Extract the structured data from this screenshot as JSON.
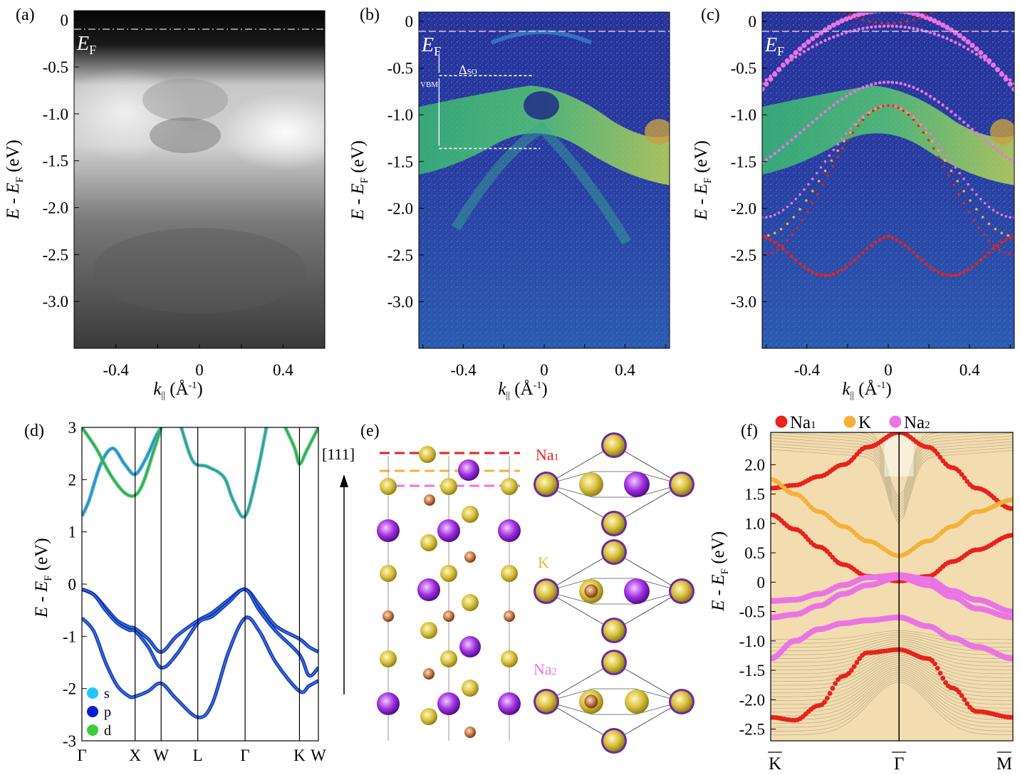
{
  "panels": {
    "a": {
      "label": "(a)",
      "ef_label": "E",
      "ef_sub": "F"
    },
    "b": {
      "label": "(b)",
      "ef_label": "E",
      "ef_sub": "F",
      "delta_label": "Δ",
      "delta_sub": "SO",
      "vbm_label": "VBM"
    },
    "c": {
      "label": "(c)",
      "ef_label": "E",
      "ef_sub": "F"
    },
    "d": {
      "label": "(d)"
    },
    "e": {
      "label": "(e)",
      "direction": "[111]",
      "na1": "Na",
      "na1_sub": "1",
      "k": "K",
      "na2": "Na",
      "na2_sub": "2"
    },
    "f": {
      "label": "(f)"
    }
  },
  "chart_data": [
    {
      "id": "a",
      "type": "heatmap",
      "xlabel": "k|| (Å-1)",
      "ylabel": "E - EF (eV)",
      "xlim": [
        -0.6,
        0.6
      ],
      "ylim": [
        -3.5,
        0.1
      ],
      "xticks": [
        -0.4,
        0,
        0.4
      ],
      "yticks": [
        0,
        -0.5,
        -1.0,
        -1.5,
        -2.0,
        -2.5,
        -3.0
      ],
      "ytick_labels": [
        "0",
        "-0.5",
        "-1.0",
        "-1.5",
        "-2.0",
        "-2.5",
        "-3.0"
      ],
      "colormap": "grayscale"
    },
    {
      "id": "b",
      "type": "heatmap",
      "xlabel": "k|| (Å-1)",
      "ylabel": "E - EF (eV)",
      "xlim": [
        -0.62,
        0.62
      ],
      "ylim": [
        -3.5,
        0.1
      ],
      "xticks": [
        -0.4,
        0,
        0.4
      ],
      "yticks": [
        0,
        -0.5,
        -1.0,
        -1.5,
        -2.0,
        -2.5,
        -3.0
      ],
      "ytick_labels": [
        "0",
        "-0.5",
        "-1.0",
        "-1.5",
        "-2.0",
        "-2.5",
        "-3.0"
      ],
      "annotations": {
        "vbm_energy": -0.58,
        "lower_band_energy": -1.36,
        "arrow_k": -0.52
      },
      "colormap": "viridis-like"
    },
    {
      "id": "c",
      "type": "heatmap",
      "xlabel": "k|| (Å-1)",
      "ylabel": "E - EF (eV)",
      "xlim": [
        -0.62,
        0.62
      ],
      "ylim": [
        -3.5,
        0.1
      ],
      "xticks": [
        -0.4,
        0,
        0.4
      ],
      "yticks": [
        0,
        -0.5,
        -1.0,
        -1.5,
        -2.0,
        -2.5,
        -3.0
      ],
      "ytick_labels": [
        "0",
        "-0.5",
        "-1.0",
        "-1.5",
        "-2.0",
        "-2.5",
        "-3.0"
      ],
      "overlay_colors": [
        "#e8221c",
        "#f4b13a",
        "#ea74e4"
      ]
    },
    {
      "id": "d",
      "type": "line",
      "ylabel": "E - EF (eV)",
      "ylim": [
        -3,
        3
      ],
      "yticks": [
        3,
        2,
        1,
        0,
        -1,
        -2,
        -3
      ],
      "ytick_labels": [
        "3",
        "2",
        "1",
        "0",
        "-1",
        "-2",
        "-3"
      ],
      "kpoints": [
        "Γ",
        "X",
        "W",
        "L",
        "Γ",
        "K",
        "W"
      ],
      "kpos": [
        0,
        0.225,
        0.335,
        0.49,
        0.69,
        0.92,
        1.0
      ],
      "legend": [
        "s",
        "p",
        "d"
      ],
      "legend_colors": [
        "#1ec8ff",
        "#0a1fd0",
        "#3ccc3c"
      ],
      "bands": [
        {
          "x": [
            0,
            0.05,
            0.1,
            0.15,
            0.2,
            0.225,
            0.28,
            0.335,
            0.4,
            0.49,
            0.55,
            0.62,
            0.69,
            0.75,
            0.82,
            0.92,
            0.96,
            1.0
          ],
          "y": [
            -0.1,
            -0.2,
            -0.45,
            -0.7,
            -0.82,
            -0.85,
            -1.05,
            -1.3,
            -1.0,
            -0.7,
            -0.55,
            -0.3,
            -0.1,
            -0.4,
            -0.8,
            -1.05,
            -1.2,
            -1.3
          ]
        },
        {
          "x": [
            0,
            0.05,
            0.1,
            0.15,
            0.2,
            0.225,
            0.28,
            0.335,
            0.4,
            0.49,
            0.55,
            0.62,
            0.69,
            0.75,
            0.82,
            0.92,
            0.96,
            1.0
          ],
          "y": [
            -0.1,
            -0.2,
            -0.5,
            -0.75,
            -0.88,
            -0.9,
            -1.2,
            -1.6,
            -1.35,
            -0.75,
            -0.62,
            -0.35,
            -0.1,
            -0.5,
            -0.9,
            -1.35,
            -1.75,
            -1.6
          ]
        },
        {
          "x": [
            0,
            0.05,
            0.1,
            0.15,
            0.2,
            0.225,
            0.28,
            0.335,
            0.4,
            0.49,
            0.55,
            0.62,
            0.69,
            0.75,
            0.82,
            0.92,
            0.96,
            1.0
          ],
          "y": [
            -0.65,
            -0.9,
            -1.5,
            -1.95,
            -2.15,
            -2.15,
            -2.05,
            -1.9,
            -2.2,
            -2.55,
            -2.3,
            -1.3,
            -0.65,
            -0.9,
            -1.5,
            -2.05,
            -1.95,
            -1.85
          ]
        },
        {
          "x": [
            0,
            0.03,
            0.08,
            0.13,
            0.18,
            0.225,
            0.27,
            0.31,
            0.335
          ],
          "y": [
            1.3,
            1.6,
            2.3,
            2.6,
            2.3,
            2.1,
            2.4,
            2.8,
            3.0
          ]
        },
        {
          "x": [
            0,
            0.06,
            0.12,
            0.18,
            0.225,
            0.26,
            0.3,
            0.335
          ],
          "y": [
            3.0,
            2.6,
            2.1,
            1.75,
            1.7,
            1.95,
            2.5,
            3.0
          ]
        },
        {
          "x": [
            0.42,
            0.47,
            0.53,
            0.6,
            0.64,
            0.69,
            0.74,
            0.78
          ],
          "y": [
            3.0,
            2.35,
            2.25,
            2.05,
            1.6,
            1.3,
            2.1,
            3.0
          ]
        },
        {
          "x": [
            0.86,
            0.9,
            0.92,
            0.95,
            1.0
          ],
          "y": [
            3.0,
            2.6,
            2.3,
            2.55,
            3.0
          ]
        }
      ]
    },
    {
      "id": "f",
      "type": "scatter",
      "ylabel": "E - EF (eV)",
      "ylim": [
        -2.7,
        2.55
      ],
      "yticks": [
        2.0,
        1.5,
        1.0,
        0.5,
        0,
        -0.5,
        -1.0,
        -1.5,
        -2.0,
        -2.5
      ],
      "ytick_labels": [
        "2.0",
        "1.5",
        "1.0",
        "0.5",
        "0",
        "-0.5",
        "-1.0",
        "-1.5",
        "-2.0",
        "-2.5"
      ],
      "kpoints": [
        "K",
        "Γ",
        "M"
      ],
      "kpos": [
        0,
        0.53,
        1.0
      ],
      "legend": [
        {
          "name": "Na",
          "sub": "1",
          "color": "#e8221c"
        },
        {
          "name": "K",
          "sub": "",
          "color": "#f4b13a"
        },
        {
          "name": "Na",
          "sub": "2",
          "color": "#ea74e4"
        }
      ],
      "series": [
        {
          "name": "Na1",
          "x": [
            0,
            0.1,
            0.2,
            0.3,
            0.4,
            0.53,
            0.65,
            0.75,
            0.85,
            1.0
          ],
          "y": [
            1.15,
            0.9,
            0.6,
            0.3,
            0.1,
            0.02,
            0.1,
            0.35,
            0.55,
            0.8
          ]
        },
        {
          "name": "Na1",
          "x": [
            0,
            0.1,
            0.2,
            0.3,
            0.4,
            0.53,
            0.65,
            0.75,
            0.85,
            1.0
          ],
          "y": [
            1.6,
            1.65,
            1.8,
            2.0,
            2.3,
            2.55,
            2.3,
            1.95,
            1.6,
            1.25
          ]
        },
        {
          "name": "Na1",
          "x": [
            0,
            0.1,
            0.2,
            0.3,
            0.4,
            0.53,
            0.65,
            0.75,
            0.85,
            1.0
          ],
          "y": [
            -2.3,
            -2.35,
            -2.1,
            -1.6,
            -1.2,
            -1.15,
            -1.3,
            -1.8,
            -2.2,
            -2.3
          ]
        },
        {
          "name": "K",
          "x": [
            0,
            0.1,
            0.2,
            0.3,
            0.4,
            0.53,
            0.65,
            0.75,
            0.85,
            1.0
          ],
          "y": [
            1.75,
            1.5,
            1.2,
            0.95,
            0.7,
            0.45,
            0.7,
            0.95,
            1.2,
            1.4
          ]
        },
        {
          "name": "Na2",
          "x": [
            0,
            0.1,
            0.2,
            0.3,
            0.4,
            0.53,
            0.65,
            0.75,
            0.85,
            1.0
          ],
          "y": [
            -0.32,
            -0.3,
            -0.2,
            -0.05,
            0.08,
            0.12,
            0.05,
            -0.15,
            -0.3,
            -0.5
          ]
        },
        {
          "name": "Na2",
          "x": [
            0,
            0.1,
            0.2,
            0.3,
            0.4,
            0.53,
            0.65,
            0.75,
            0.85,
            1.0
          ],
          "y": [
            -0.6,
            -0.55,
            -0.4,
            -0.2,
            -0.05,
            0.08,
            -0.05,
            -0.25,
            -0.45,
            -0.6
          ]
        },
        {
          "name": "Na2",
          "x": [
            0,
            0.1,
            0.2,
            0.3,
            0.4,
            0.53,
            0.65,
            0.75,
            0.85,
            1.0
          ],
          "y": [
            -1.3,
            -1.0,
            -0.8,
            -0.7,
            -0.65,
            -0.6,
            -0.75,
            -0.95,
            -1.1,
            -1.3
          ]
        }
      ]
    }
  ]
}
